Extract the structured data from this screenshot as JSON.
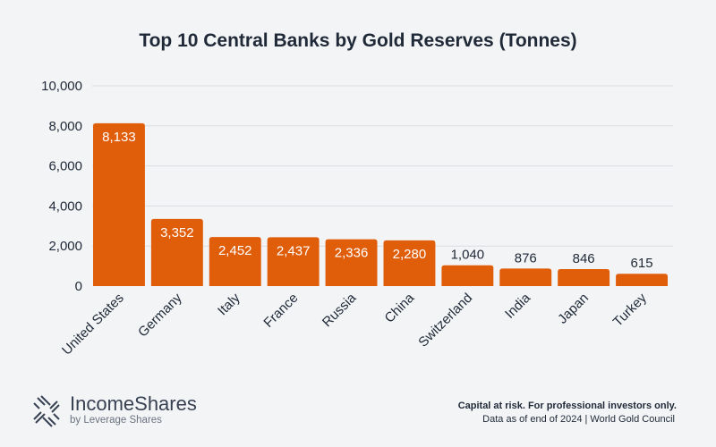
{
  "brand": {
    "name": "IncomeShares",
    "sub": "by Leverage Shares"
  },
  "footer": {
    "disclaimer": "Capital at risk. For professional investors only.",
    "source": "Data as of end of 2024 | World Gold Council"
  },
  "colors": {
    "bar": "#e05d0a",
    "background": "#f3f4f6",
    "grid": "#d9dce1",
    "text": "#1f2937"
  },
  "chart_data": {
    "type": "bar",
    "title": "Top 10 Central Banks by Gold Reserves (Tonnes)",
    "categories": [
      "United States",
      "Germany",
      "Italy",
      "France",
      "Russia",
      "China",
      "Switzerland",
      "India",
      "Japan",
      "Turkey"
    ],
    "values": [
      8133,
      3352,
      2452,
      2437,
      2336,
      2280,
      1040,
      876,
      846,
      615
    ],
    "value_labels": [
      "8,133",
      "3,352",
      "2,452",
      "2,437",
      "2,336",
      "2,280",
      "1,040",
      "876",
      "846",
      "615"
    ],
    "ylim": [
      0,
      10000
    ],
    "yticks": [
      0,
      2000,
      4000,
      6000,
      8000,
      10000
    ],
    "ytick_labels": [
      "0",
      "2,000",
      "4,000",
      "6,000",
      "8,000",
      "10,000"
    ],
    "xlabel": "",
    "ylabel": "",
    "grid": true
  }
}
